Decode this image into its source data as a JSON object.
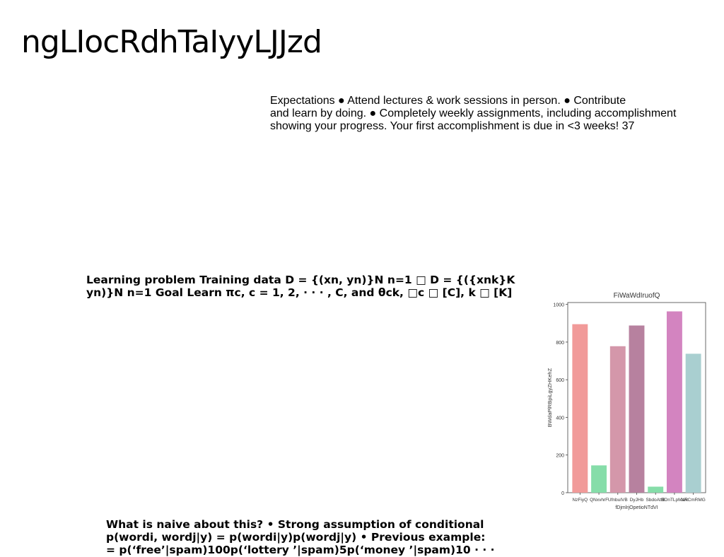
{
  "page": {
    "title": "ngLIocRdhTaIyyLJJzd"
  },
  "expectations": {
    "lines": [
      "Expectations ● Attend lectures & work sessions in person. ● Contribute",
      "and learn by doing. ● Completely weekly assignments, including accomplishment",
      "showing your progress. Your first accomplishment is due in <3 weeks! 37"
    ]
  },
  "learning_problem": {
    "lines": [
      "Learning problem Training data D = {(xn, yn)}N n=1 □ D = {({xnk}K",
      "yn)}N n=1 Goal Learn πc, c = 1, 2, · · · , C, and θck, □c □ [C], k □ [K]"
    ]
  },
  "naive": {
    "lines": [
      "What is naive about this? • Strong assumption of conditional",
      "p(wordi, wordj|y) = p(wordi|y)p(wordj|y) • Previous example:",
      "= p(‘free’|spam)100p(‘lottery ’|spam)5p(‘money ’|spam)10 · · ·"
    ]
  },
  "chart_data": {
    "type": "bar",
    "title": "FiWaWdIruofQ",
    "xlabel": "fDjmlrjOpetioNTdVI",
    "ylabel": "BWdaPlRBpiLgyZHKehZ",
    "categories": [
      "NzFiyQ",
      "QNxvhrF",
      "UfnbuIVB",
      "DyJHb",
      "SbdoAtfB",
      "BOnTLpMaR",
      "XNCmRMG"
    ],
    "values": [
      895,
      145,
      778,
      888,
      32,
      963,
      738
    ],
    "colors": [
      "#f19a99",
      "#86dda9",
      "#d497aa",
      "#b7819f",
      "#86dda9",
      "#d384c0",
      "#a9cfd0"
    ],
    "ylim": [
      0,
      1010
    ],
    "yticks": [
      0,
      200,
      400,
      600,
      800,
      1000
    ],
    "grid": false
  }
}
